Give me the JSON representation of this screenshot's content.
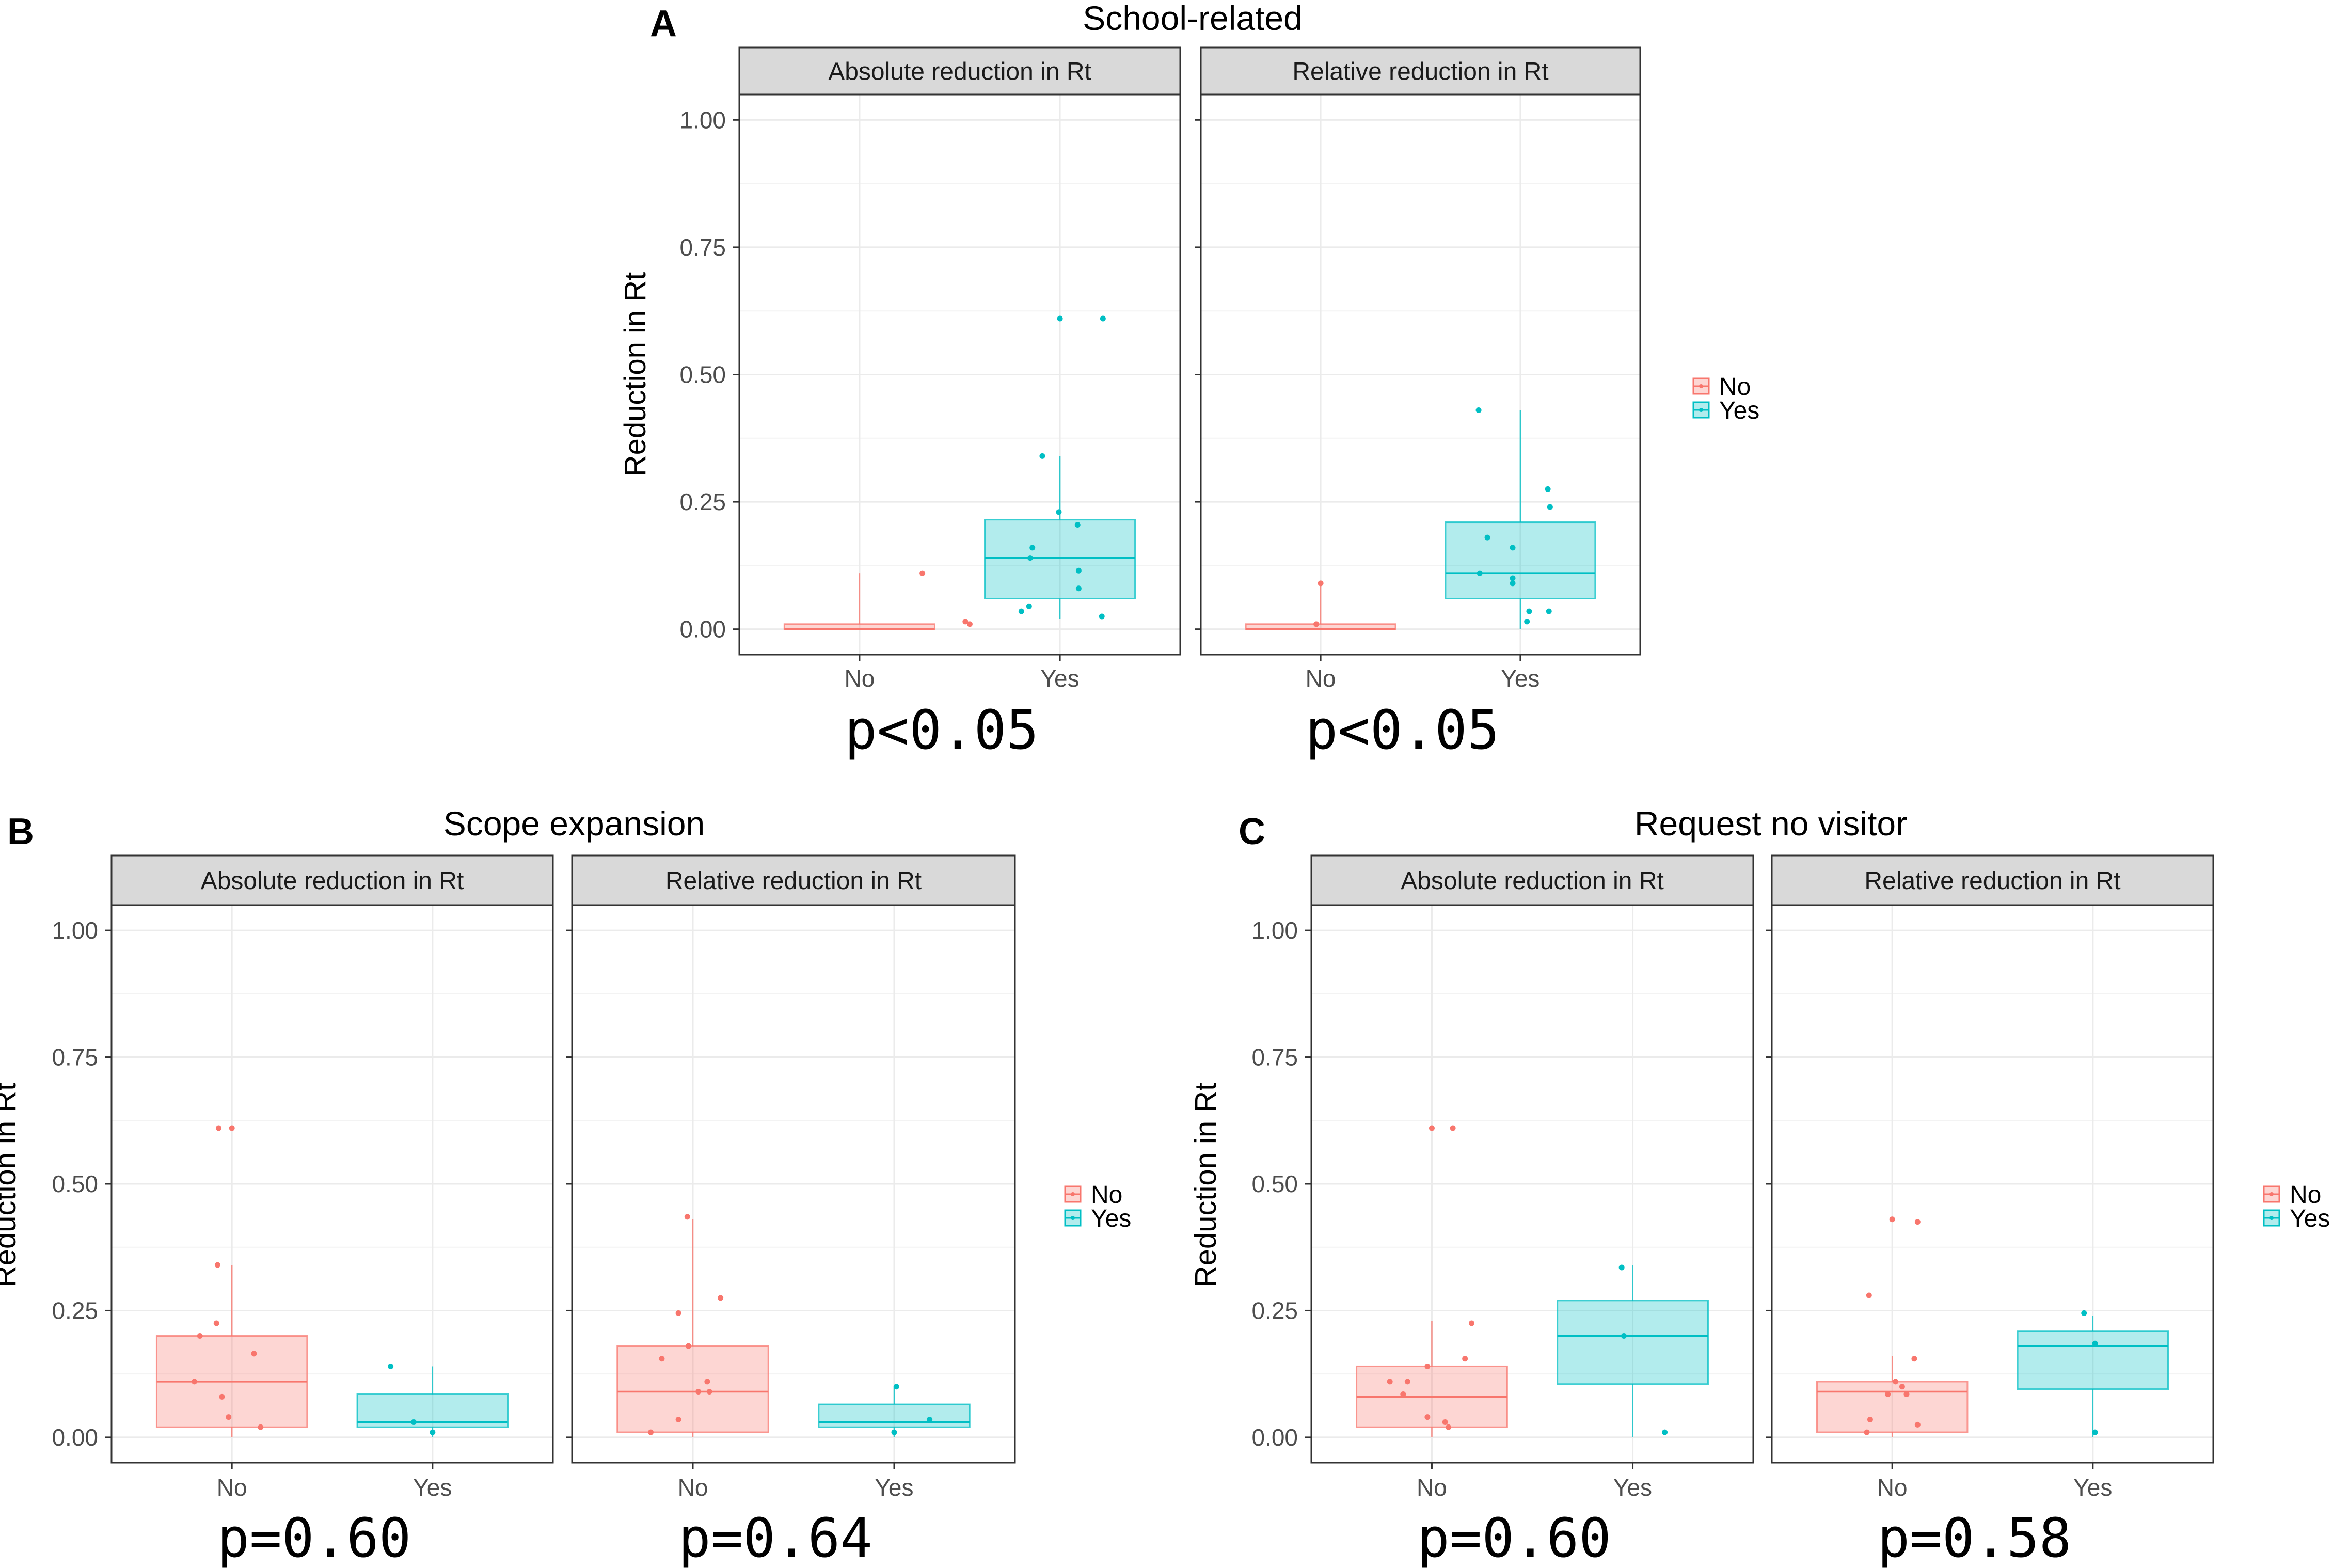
{
  "chart_data": [
    {
      "id": "A",
      "type": "box",
      "panel_label": "A",
      "title": "School-related",
      "ylabel": "Reduction in Rt",
      "xlabel": "",
      "ylim": [
        0,
        1
      ],
      "yticks": [
        "0.00",
        "0.25",
        "0.50",
        "0.75",
        "1.00"
      ],
      "categories": [
        "No",
        "Yes"
      ],
      "legend": {
        "position": "right",
        "entries": [
          "No",
          "Yes"
        ]
      },
      "facets": [
        {
          "strip": "Absolute reduction in Rt",
          "p_value": "p<0.05",
          "boxes": [
            {
              "group": "No",
              "q1": 0.0,
              "median": 0.0,
              "q3": 0.01,
              "lower": 0.0,
              "upper": 0.11,
              "points": [
                [
                  0.57,
                  0.11
                ],
                [
                  0.96,
                  0.015
                ],
                [
                  1.0,
                  0.01
                ]
              ]
            },
            {
              "group": "Yes",
              "q1": 0.06,
              "median": 0.14,
              "q3": 0.215,
              "lower": 0.02,
              "upper": 0.34,
              "points": [
                [
                  -0.35,
                  0.035
                ],
                [
                  -0.28,
                  0.045
                ],
                [
                  -0.27,
                  0.14
                ],
                [
                  -0.25,
                  0.16
                ],
                [
                  -0.16,
                  0.34
                ],
                [
                  0.0,
                  0.61
                ],
                [
                  -0.01,
                  0.23
                ],
                [
                  0.17,
                  0.115
                ],
                [
                  0.17,
                  0.08
                ],
                [
                  0.16,
                  0.205
                ],
                [
                  0.38,
                  0.025
                ],
                [
                  0.39,
                  0.61
                ]
              ]
            }
          ]
        },
        {
          "strip": "Relative reduction in Rt",
          "p_value": "p<0.05",
          "boxes": [
            {
              "group": "No",
              "q1": 0.0,
              "median": 0.0,
              "q3": 0.01,
              "lower": 0.0,
              "upper": 0.09,
              "points": [
                [
                  0.0,
                  0.09
                ],
                [
                  -0.04,
                  0.01
                ]
              ]
            },
            {
              "group": "Yes",
              "q1": 0.06,
              "median": 0.11,
              "q3": 0.21,
              "lower": 0.0,
              "upper": 0.43,
              "points": [
                [
                  -0.38,
                  0.43
                ],
                [
                  -0.3,
                  0.18
                ],
                [
                  -0.37,
                  0.11
                ],
                [
                  -0.07,
                  0.16
                ],
                [
                  -0.07,
                  0.1
                ],
                [
                  -0.07,
                  0.09
                ],
                [
                  0.08,
                  0.035
                ],
                [
                  0.06,
                  0.015
                ],
                [
                  0.25,
                  0.275
                ],
                [
                  0.27,
                  0.24
                ],
                [
                  0.26,
                  0.035
                ]
              ]
            }
          ]
        }
      ]
    },
    {
      "id": "B",
      "type": "box",
      "panel_label": "B",
      "title": "Scope expansion",
      "ylabel": "Reduction in Rt",
      "xlabel": "",
      "ylim": [
        0,
        1
      ],
      "yticks": [
        "0.00",
        "0.25",
        "0.50",
        "0.75",
        "1.00"
      ],
      "categories": [
        "No",
        "Yes"
      ],
      "legend": {
        "position": "right",
        "entries": [
          "No",
          "Yes"
        ]
      },
      "facets": [
        {
          "strip": "Absolute reduction in Rt",
          "p_value": "p=0.60",
          "boxes": [
            {
              "group": "No",
              "q1": 0.02,
              "median": 0.11,
              "q3": 0.2,
              "lower": 0.0,
              "upper": 0.34,
              "points": [
                [
                  -0.34,
                  0.11
                ],
                [
                  -0.29,
                  0.2
                ],
                [
                  -0.12,
                  0.61
                ],
                [
                  -0.13,
                  0.34
                ],
                [
                  -0.14,
                  0.225
                ],
                [
                  -0.09,
                  0.08
                ],
                [
                  -0.03,
                  0.04
                ],
                [
                  0.2,
                  0.165
                ],
                [
                  0.26,
                  0.02
                ],
                [
                  0.0,
                  0.61
                ]
              ]
            },
            {
              "group": "Yes",
              "q1": 0.02,
              "median": 0.03,
              "q3": 0.085,
              "lower": 0.0,
              "upper": 0.14,
              "points": [
                [
                  -0.38,
                  0.14
                ],
                [
                  -0.17,
                  0.03
                ],
                [
                  0.0,
                  0.01
                ]
              ]
            }
          ]
        },
        {
          "strip": "Relative reduction in Rt",
          "p_value": "p=0.64",
          "boxes": [
            {
              "group": "No",
              "q1": 0.01,
              "median": 0.09,
              "q3": 0.18,
              "lower": 0.0,
              "upper": 0.43,
              "points": [
                [
                  -0.38,
                  0.01
                ],
                [
                  -0.28,
                  0.155
                ],
                [
                  -0.13,
                  0.245
                ],
                [
                  -0.13,
                  0.035
                ],
                [
                  -0.05,
                  0.435
                ],
                [
                  -0.04,
                  0.18
                ],
                [
                  0.05,
                  0.09
                ],
                [
                  0.13,
                  0.11
                ],
                [
                  0.15,
                  0.09
                ],
                [
                  0.25,
                  0.275
                ]
              ]
            },
            {
              "group": "Yes",
              "q1": 0.02,
              "median": 0.03,
              "q3": 0.065,
              "lower": 0.0,
              "upper": 0.1,
              "points": [
                [
                  0.02,
                  0.1
                ],
                [
                  0.32,
                  0.035
                ],
                [
                  0.0,
                  0.01
                ]
              ]
            }
          ]
        }
      ]
    },
    {
      "id": "C",
      "type": "box",
      "panel_label": "C",
      "title": "Request no visitor",
      "ylabel": "Reduction in Rt",
      "xlabel": "",
      "ylim": [
        0,
        1
      ],
      "yticks": [
        "0.00",
        "0.25",
        "0.50",
        "0.75",
        "1.00"
      ],
      "categories": [
        "No",
        "Yes"
      ],
      "legend": {
        "position": "right",
        "entries": [
          "No",
          "Yes"
        ]
      },
      "facets": [
        {
          "strip": "Absolute reduction in Rt",
          "p_value": "p=0.60",
          "boxes": [
            {
              "group": "No",
              "q1": 0.02,
              "median": 0.08,
              "q3": 0.14,
              "lower": 0.0,
              "upper": 0.23,
              "points": [
                [
                  -0.38,
                  0.11
                ],
                [
                  -0.26,
                  0.085
                ],
                [
                  -0.22,
                  0.11
                ],
                [
                  -0.04,
                  0.14
                ],
                [
                  -0.04,
                  0.04
                ],
                [
                  0.12,
                  0.03
                ],
                [
                  0.15,
                  0.02
                ],
                [
                  0.19,
                  0.61
                ],
                [
                  0.3,
                  0.155
                ],
                [
                  0.36,
                  0.225
                ],
                [
                  0.0,
                  0.61
                ]
              ]
            },
            {
              "group": "Yes",
              "q1": 0.105,
              "median": 0.2,
              "q3": 0.27,
              "lower": 0.0,
              "upper": 0.34,
              "points": [
                [
                  -0.1,
                  0.335
                ],
                [
                  -0.08,
                  0.2
                ],
                [
                  0.29,
                  0.01
                ]
              ]
            }
          ]
        },
        {
          "strip": "Relative reduction in Rt",
          "p_value": "p=0.58",
          "boxes": [
            {
              "group": "No",
              "q1": 0.01,
              "median": 0.09,
              "q3": 0.11,
              "lower": 0.0,
              "upper": 0.16,
              "points": [
                [
                  -0.21,
                  0.28
                ],
                [
                  -0.23,
                  0.01
                ],
                [
                  -0.2,
                  0.035
                ],
                [
                  -0.04,
                  0.085
                ],
                [
                  0.03,
                  0.11
                ],
                [
                  0.09,
                  0.1
                ],
                [
                  0.13,
                  0.085
                ],
                [
                  0.2,
                  0.155
                ],
                [
                  0.23,
                  0.025
                ],
                [
                  0.23,
                  0.425
                ],
                [
                  0.0,
                  0.43
                ]
              ]
            },
            {
              "group": "Yes",
              "q1": 0.095,
              "median": 0.18,
              "q3": 0.21,
              "lower": 0.0,
              "upper": 0.24,
              "points": [
                [
                  -0.08,
                  0.245
                ],
                [
                  0.02,
                  0.185
                ],
                [
                  0.02,
                  0.01
                ]
              ]
            }
          ]
        }
      ]
    }
  ],
  "colors": {
    "No": "#f8766d",
    "Yes": "#00bfc4",
    "strip_fill": "#d9d9d9",
    "grid": "#ebebeb",
    "axis_text": "#4d4d4d"
  }
}
